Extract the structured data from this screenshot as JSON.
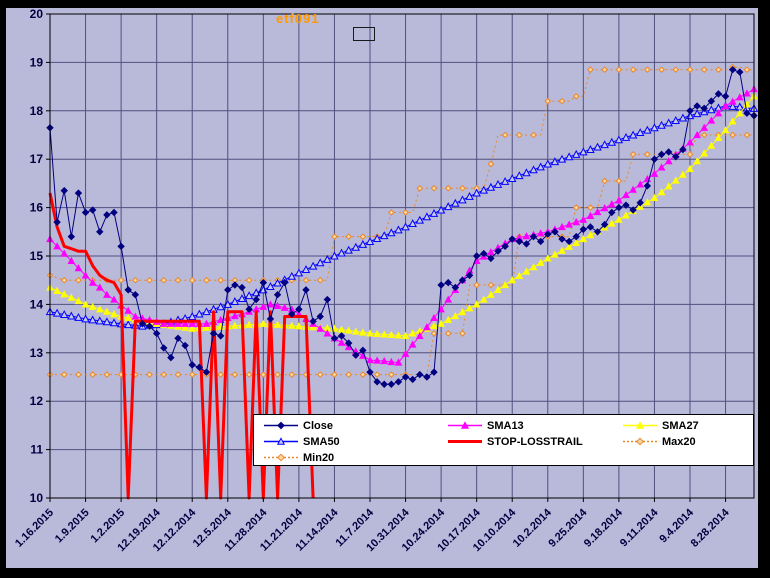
{
  "title": "etf091",
  "colors": {
    "frame": "#000000",
    "background": "#b9b9da",
    "grid": "#50507e",
    "plot_border": "#000000",
    "axis_text": "#000040",
    "title": "#ff9900",
    "legend_bg": "#ffffff",
    "legend_border": "#000000"
  },
  "chart_data": {
    "type": "line",
    "title": "etf091",
    "xlabel": "",
    "ylabel": "",
    "ylim": [
      10,
      20
    ],
    "y_ticks": [
      10,
      11,
      12,
      13,
      14,
      15,
      16,
      17,
      18,
      19,
      20
    ],
    "grid": true,
    "legend_position": "bottom-center",
    "x_axis_note": "dates displayed newest-to-oldest, one label per 5 daily points",
    "x_labels": [
      "1.16.2015",
      "1.9.2015",
      "1.2.2015",
      "12.19.2014",
      "12.12.2014",
      "12.5.2014",
      "11.28.2014",
      "11.21.2014",
      "11.14.2014",
      "11.7.2014",
      "10.31.2014",
      "10.24.2014",
      "10.17.2014",
      "10.10.2014",
      "10.2.2014",
      "9.25.2014",
      "9.18.2014",
      "9.11.2014",
      "9.4.2014",
      "8.28.2014"
    ],
    "points_per_label": 5,
    "series": [
      {
        "name": "Close",
        "color": "#000080",
        "marker": "diamond-filled",
        "line": "solid",
        "width": 1,
        "values": [
          17.65,
          15.7,
          16.35,
          15.4,
          16.3,
          15.9,
          15.95,
          15.5,
          15.85,
          15.9,
          15.2,
          14.3,
          14.2,
          13.6,
          13.55,
          13.4,
          13.1,
          12.9,
          13.3,
          13.15,
          12.75,
          12.7,
          12.6,
          13.4,
          13.35,
          14.3,
          14.4,
          14.35,
          13.9,
          14.1,
          14.45,
          13.7,
          14.2,
          14.45,
          13.8,
          13.9,
          14.3,
          13.65,
          13.75,
          14.1,
          13.3,
          13.35,
          13.2,
          12.95,
          13.05,
          12.6,
          12.4,
          12.35,
          12.35,
          12.4,
          12.5,
          12.45,
          12.55,
          12.5,
          12.6,
          14.4,
          14.45,
          14.35,
          14.5,
          14.6,
          15.0,
          15.05,
          14.95,
          15.1,
          15.2,
          15.35,
          15.3,
          15.25,
          15.4,
          15.3,
          15.45,
          15.5,
          15.35,
          15.3,
          15.4,
          15.55,
          15.6,
          15.5,
          15.65,
          15.9,
          16.0,
          16.05,
          15.95,
          16.1,
          16.45,
          17.0,
          17.1,
          17.15,
          17.05,
          17.2,
          18.0,
          18.1,
          18.05,
          18.2,
          18.35,
          18.3,
          18.85,
          18.8,
          17.95,
          17.9
        ]
      },
      {
        "name": "SMA13",
        "color": "#ff00ff",
        "marker": "triangle-filled",
        "line": "solid",
        "width": 1,
        "values": [
          15.35,
          15.2,
          15.05,
          14.9,
          14.75,
          14.6,
          14.45,
          14.35,
          14.2,
          14.1,
          13.98,
          13.87,
          13.75,
          13.71,
          13.68,
          13.64,
          13.6,
          13.6,
          13.6,
          13.6,
          13.6,
          13.6,
          13.6,
          13.64,
          13.68,
          13.72,
          13.76,
          13.8,
          13.85,
          13.9,
          13.95,
          14.0,
          13.97,
          13.93,
          13.9,
          13.8,
          13.7,
          13.6,
          13.5,
          13.4,
          13.3,
          13.21,
          13.12,
          13.03,
          12.94,
          12.85,
          12.84,
          12.83,
          12.81,
          12.8,
          12.98,
          13.17,
          13.35,
          13.53,
          13.72,
          13.9,
          14.1,
          14.3,
          14.5,
          14.7,
          14.9,
          14.99,
          15.08,
          15.17,
          15.26,
          15.35,
          15.38,
          15.41,
          15.44,
          15.47,
          15.5,
          15.55,
          15.6,
          15.65,
          15.7,
          15.75,
          15.83,
          15.91,
          15.99,
          16.07,
          16.15,
          16.26,
          16.37,
          16.48,
          16.59,
          16.7,
          16.83,
          16.96,
          17.09,
          17.22,
          17.35,
          17.5,
          17.65,
          17.8,
          17.95,
          18.1,
          18.19,
          18.28,
          18.36,
          18.45
        ]
      },
      {
        "name": "SMA27",
        "color": "#ffff00",
        "marker": "triangle-filled",
        "line": "solid",
        "width": 1,
        "values": [
          14.35,
          14.28,
          14.21,
          14.14,
          14.07,
          14.0,
          13.95,
          13.9,
          13.85,
          13.8,
          13.75,
          13.72,
          13.69,
          13.66,
          13.63,
          13.6,
          13.58,
          13.56,
          13.54,
          13.52,
          13.5,
          13.51,
          13.52,
          13.53,
          13.54,
          13.55,
          13.56,
          13.57,
          13.58,
          13.59,
          13.6,
          13.59,
          13.58,
          13.57,
          13.56,
          13.55,
          13.54,
          13.53,
          13.52,
          13.51,
          13.5,
          13.48,
          13.46,
          13.44,
          13.42,
          13.4,
          13.39,
          13.38,
          13.37,
          13.36,
          13.35,
          13.4,
          13.45,
          13.5,
          13.55,
          13.6,
          13.68,
          13.76,
          13.84,
          13.92,
          14.0,
          14.1,
          14.2,
          14.3,
          14.4,
          14.5,
          14.59,
          14.68,
          14.77,
          14.86,
          14.95,
          15.03,
          15.11,
          15.19,
          15.27,
          15.35,
          15.43,
          15.51,
          15.59,
          15.67,
          15.75,
          15.84,
          15.93,
          16.02,
          16.11,
          16.2,
          16.32,
          16.44,
          16.56,
          16.68,
          16.8,
          16.96,
          17.12,
          17.28,
          17.44,
          17.6,
          17.78,
          17.95,
          18.13,
          18.3
        ]
      },
      {
        "name": "SMA50",
        "color": "#0000ff",
        "marker": "triangle-open",
        "line": "solid",
        "width": 1,
        "values": [
          13.85,
          13.82,
          13.79,
          13.76,
          13.73,
          13.7,
          13.68,
          13.66,
          13.64,
          13.62,
          13.6,
          13.58,
          13.57,
          13.55,
          13.57,
          13.58,
          13.6,
          13.64,
          13.68,
          13.71,
          13.75,
          13.8,
          13.85,
          13.9,
          13.95,
          14.0,
          14.06,
          14.12,
          14.18,
          14.24,
          14.3,
          14.37,
          14.44,
          14.51,
          14.58,
          14.65,
          14.72,
          14.79,
          14.86,
          14.93,
          15.0,
          15.06,
          15.12,
          15.18,
          15.24,
          15.3,
          15.36,
          15.42,
          15.48,
          15.54,
          15.6,
          15.67,
          15.74,
          15.81,
          15.88,
          15.95,
          16.02,
          16.09,
          16.16,
          16.23,
          16.3,
          16.36,
          16.42,
          16.48,
          16.54,
          16.6,
          16.66,
          16.72,
          16.78,
          16.84,
          16.9,
          16.95,
          17.0,
          17.05,
          17.1,
          17.15,
          17.2,
          17.25,
          17.3,
          17.35,
          17.4,
          17.45,
          17.5,
          17.55,
          17.6,
          17.65,
          17.7,
          17.75,
          17.8,
          17.85,
          17.9,
          17.94,
          17.98,
          18.02,
          18.06,
          18.1,
          18.09,
          18.08,
          18.06,
          18.05
        ]
      },
      {
        "name": "STOP-LOSSTRAIL",
        "color": "#ff0000",
        "marker": "none",
        "line": "solid",
        "width": 3,
        "values": [
          16.3,
          15.6,
          15.2,
          15.15,
          15.1,
          15.1,
          14.8,
          14.6,
          14.5,
          14.45,
          14.2,
          10,
          13.65,
          13.65,
          13.65,
          13.65,
          13.65,
          13.65,
          13.65,
          13.65,
          13.65,
          13.65,
          10,
          13.85,
          10,
          13.85,
          13.85,
          13.85,
          10,
          13.85,
          10,
          13.85,
          10,
          13.75,
          13.75,
          13.75,
          13.75,
          10
        ]
      },
      {
        "name": "Min20",
        "color": "#e8872b",
        "marker": "diamond-open",
        "line": "dot",
        "width": 1,
        "values": [
          12.55,
          12.55,
          12.55,
          12.55,
          12.55,
          12.55,
          12.55,
          12.55,
          12.55,
          12.55,
          12.55,
          12.55,
          12.55,
          12.55,
          12.55,
          12.55,
          12.55,
          12.55,
          12.55,
          12.55,
          12.55,
          12.55,
          12.55,
          12.55,
          12.55,
          12.55,
          12.55,
          12.55,
          12.55,
          12.55,
          12.55,
          12.55,
          12.55,
          12.55,
          12.55,
          12.55,
          12.55,
          12.55,
          12.55,
          12.55,
          12.55,
          12.55,
          12.55,
          12.55,
          12.55,
          12.55,
          12.55,
          12.55,
          12.55,
          12.55,
          12.55,
          12.55,
          12.55,
          12.55,
          13.4,
          13.4,
          13.4,
          13.4,
          13.4,
          14.4,
          14.4,
          14.4,
          14.4,
          14.4,
          14.4,
          14.4,
          15.4,
          15.4,
          15.4,
          15.4,
          15.4,
          15.4,
          15.4,
          15.4,
          16.0,
          16.0,
          16.0,
          16.0,
          16.55,
          16.55,
          16.55,
          16.55,
          17.1,
          17.1,
          17.1,
          17.1,
          17.1,
          17.1,
          17.1,
          17.1,
          17.1,
          17.5,
          17.5,
          17.5,
          17.5,
          17.5,
          17.5,
          17.5,
          17.5,
          17.5
        ]
      },
      {
        "name": "Max20",
        "color": "#e8872b",
        "marker": "diamond-open",
        "line": "dot",
        "width": 1,
        "values": [
          14.6,
          14.55,
          14.5,
          14.5,
          14.5,
          14.5,
          14.5,
          14.5,
          14.5,
          14.5,
          14.5,
          14.5,
          14.5,
          14.5,
          14.5,
          14.5,
          14.5,
          14.5,
          14.5,
          14.5,
          14.5,
          14.5,
          14.5,
          14.5,
          14.5,
          14.5,
          14.5,
          14.5,
          14.5,
          14.5,
          14.5,
          14.5,
          14.5,
          14.5,
          14.5,
          14.5,
          14.5,
          14.5,
          14.5,
          14.5,
          15.4,
          15.4,
          15.4,
          15.4,
          15.4,
          15.4,
          15.4,
          15.4,
          15.9,
          15.9,
          15.9,
          15.9,
          16.4,
          16.4,
          16.4,
          16.4,
          16.4,
          16.4,
          16.4,
          16.4,
          16.4,
          16.4,
          16.9,
          17.5,
          17.5,
          17.5,
          17.5,
          17.5,
          17.5,
          17.5,
          18.2,
          18.2,
          18.2,
          18.2,
          18.3,
          18.3,
          18.85,
          18.85,
          18.85,
          18.85,
          18.85,
          18.85,
          18.85,
          18.85,
          18.85,
          18.85,
          18.85,
          18.85,
          18.85,
          18.85,
          18.85,
          18.85,
          18.85,
          18.85,
          18.85,
          18.85,
          18.9,
          18.9,
          18.85,
          18.85
        ]
      }
    ]
  }
}
